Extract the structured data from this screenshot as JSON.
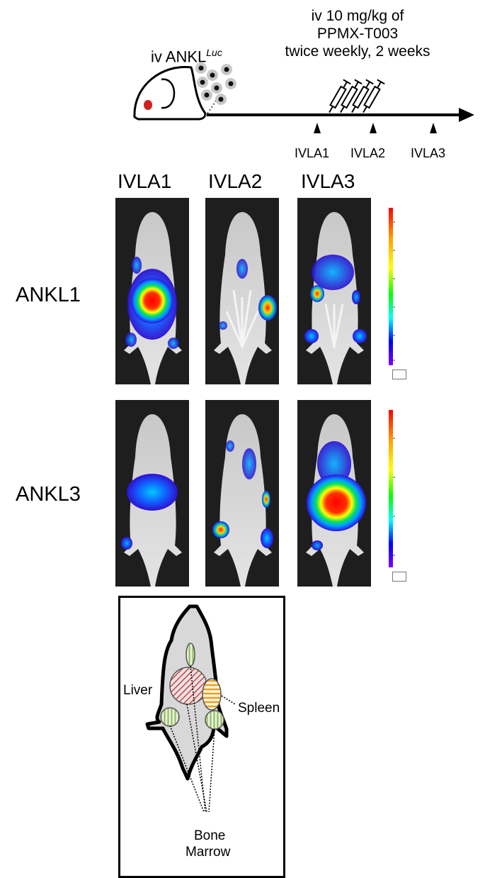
{
  "timeline": {
    "injection_label_prefix": "iv ANKL",
    "injection_label_super": "Luc",
    "dose_lines": [
      "iv 10 mg/kg of",
      "PPMX-T003",
      "twice weekly, 2 weeks"
    ],
    "timepoints": [
      "IVLA1",
      "IVLA2",
      "IVLA3"
    ],
    "icons": {
      "mouse": "mouse-icon",
      "cells": "cells-icon",
      "syringes": "syringe-icon",
      "arrow": "timeline-arrow"
    }
  },
  "imaging": {
    "column_headers": [
      "IVLA1",
      "IVLA2",
      "IVLA3"
    ],
    "rows": [
      {
        "label": "ANKL1"
      },
      {
        "label": "ANKL3"
      }
    ],
    "colorbar_colors": [
      "#ff0000",
      "#ffa500",
      "#ffff00",
      "#00ff00",
      "#00ffff",
      "#0000ff",
      "#8000ff"
    ]
  },
  "anatomy": {
    "labels": {
      "liver": "Liver",
      "spleen": "Spleen",
      "bone_marrow_1": "Bone",
      "bone_marrow_2": "Marrow"
    },
    "colors": {
      "liver": "#b03030",
      "spleen": "#e8a020",
      "bone_marrow": "#90b860",
      "body": "#d8d8d8"
    }
  }
}
